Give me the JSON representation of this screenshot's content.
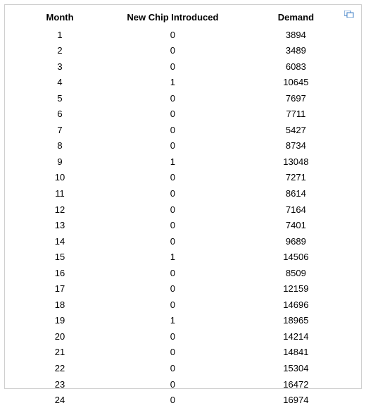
{
  "table": {
    "columns": [
      "Month",
      "New Chip Introduced",
      "Demand"
    ],
    "rows": [
      [
        1,
        0,
        3894
      ],
      [
        2,
        0,
        3489
      ],
      [
        3,
        0,
        6083
      ],
      [
        4,
        1,
        10645
      ],
      [
        5,
        0,
        7697
      ],
      [
        6,
        0,
        7711
      ],
      [
        7,
        0,
        5427
      ],
      [
        8,
        0,
        8734
      ],
      [
        9,
        1,
        13048
      ],
      [
        10,
        0,
        7271
      ],
      [
        11,
        0,
        8614
      ],
      [
        12,
        0,
        7164
      ],
      [
        13,
        0,
        7401
      ],
      [
        14,
        0,
        9689
      ],
      [
        15,
        1,
        14506
      ],
      [
        16,
        0,
        8509
      ],
      [
        17,
        0,
        12159
      ],
      [
        18,
        0,
        14696
      ],
      [
        19,
        1,
        18965
      ],
      [
        20,
        0,
        14214
      ],
      [
        21,
        0,
        14841
      ],
      [
        22,
        0,
        15304
      ],
      [
        23,
        0,
        16472
      ],
      [
        24,
        0,
        16974
      ]
    ],
    "header_fontsize": 13,
    "cell_fontsize": 13,
    "text_color": "#000000",
    "border_color": "#cfcfcf",
    "background_color": "#ffffff",
    "expand_icon_color": "#3b7cc4"
  }
}
